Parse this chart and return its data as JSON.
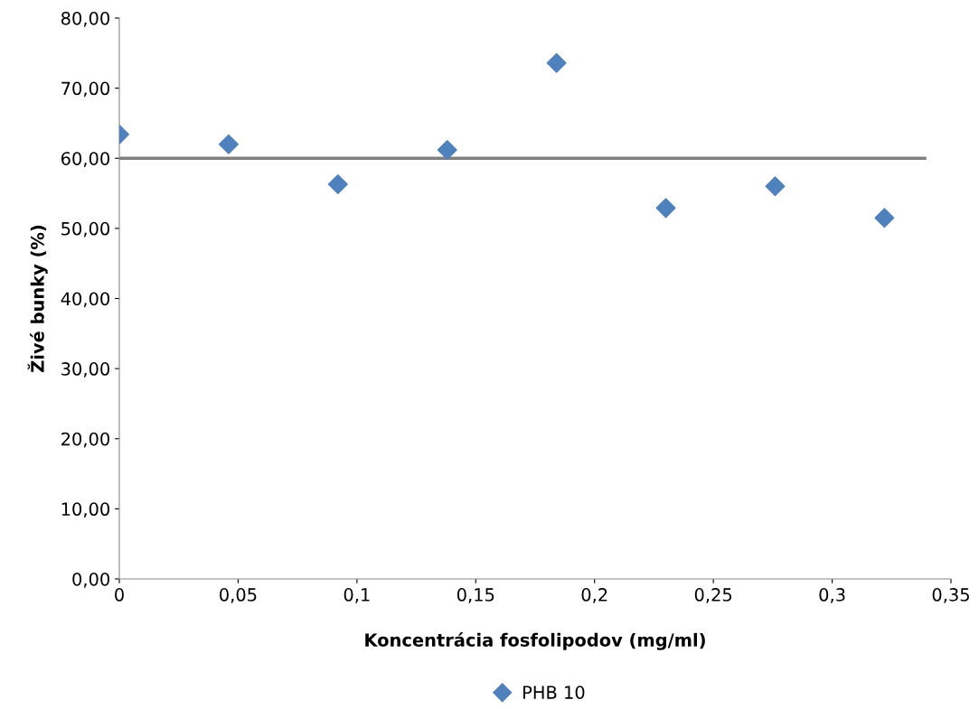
{
  "chart_data": {
    "type": "scatter",
    "xlabel": "Koncentrácia fosfolipodov (mg/ml)",
    "ylabel": "Živé bunky (%)",
    "xlim": [
      0,
      0.35
    ],
    "ylim": [
      0,
      80
    ],
    "xticks": [
      {
        "value": 0,
        "label": "0"
      },
      {
        "value": 0.05,
        "label": "0,05"
      },
      {
        "value": 0.1,
        "label": "0,1"
      },
      {
        "value": 0.15,
        "label": "0,15"
      },
      {
        "value": 0.2,
        "label": "0,2"
      },
      {
        "value": 0.25,
        "label": "0,25"
      },
      {
        "value": 0.3,
        "label": "0,3"
      },
      {
        "value": 0.35,
        "label": "0,35"
      }
    ],
    "yticks": [
      {
        "value": 0,
        "label": "0,00"
      },
      {
        "value": 10,
        "label": "10,00"
      },
      {
        "value": 20,
        "label": "20,00"
      },
      {
        "value": 30,
        "label": "30,00"
      },
      {
        "value": 40,
        "label": "40,00"
      },
      {
        "value": 50,
        "label": "50,00"
      },
      {
        "value": 60,
        "label": "60,00"
      },
      {
        "value": 70,
        "label": "70,00"
      },
      {
        "value": 80,
        "label": "80,00"
      }
    ],
    "series": [
      {
        "name": "PHB 10",
        "color": "#4f81bd",
        "marker": "diamond",
        "x": [
          0,
          0.046,
          0.092,
          0.138,
          0.184,
          0.23,
          0.276,
          0.322
        ],
        "values": [
          63.4,
          62.0,
          56.3,
          61.2,
          73.6,
          52.9,
          56.0,
          51.5
        ]
      },
      {
        "type": "line",
        "color": "#808080",
        "marker": "none",
        "x": [
          0,
          0.339
        ],
        "values": [
          60.0,
          60.0
        ]
      }
    ],
    "grid": false,
    "legend": "bottom"
  }
}
